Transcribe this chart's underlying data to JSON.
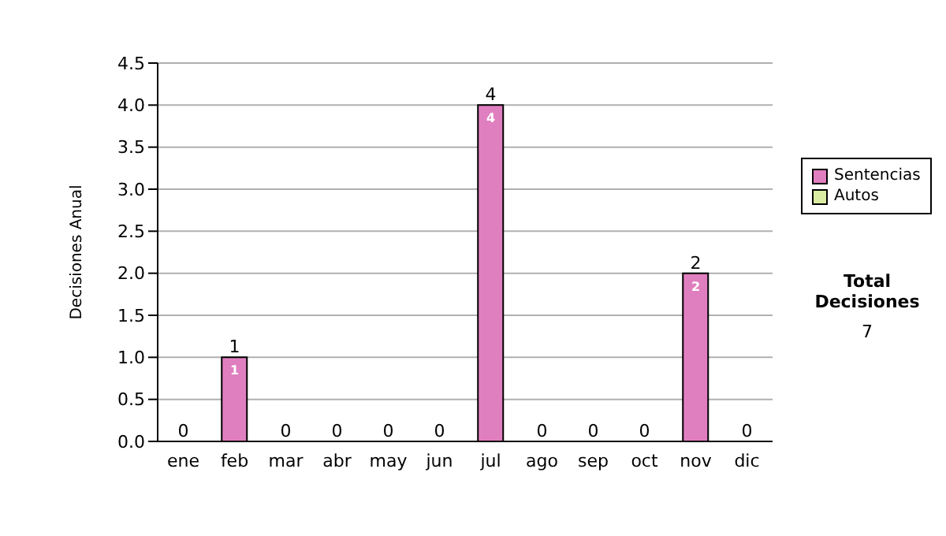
{
  "chart_data": {
    "type": "bar",
    "stacked": true,
    "ylabel": "Decisiones Anual",
    "categories": [
      "ene",
      "feb",
      "mar",
      "abr",
      "may",
      "jun",
      "jul",
      "ago",
      "sep",
      "oct",
      "nov",
      "dic"
    ],
    "series": [
      {
        "name": "Sentencias",
        "color": "#e07fbf",
        "values": [
          0,
          1,
          0,
          0,
          0,
          0,
          4,
          0,
          0,
          0,
          2,
          0
        ],
        "value_labels": [
          null,
          "1",
          null,
          null,
          null,
          null,
          "4",
          null,
          null,
          null,
          "2",
          null
        ]
      },
      {
        "name": "Autos",
        "color": "#d9eca2",
        "values": [
          0,
          0,
          0,
          0,
          0,
          0,
          0,
          0,
          0,
          0,
          0,
          0
        ]
      }
    ],
    "totals": [
      "0",
      "1",
      "0",
      "0",
      "0",
      "0",
      "4",
      "0",
      "0",
      "0",
      "2",
      "0"
    ],
    "ylim": [
      0,
      4.5
    ],
    "yticks": [
      {
        "value": 0,
        "label": "0.0"
      },
      0.5,
      {
        "value": 1,
        "label": "1.0"
      },
      1.5,
      {
        "value": 2,
        "label": "2.0"
      },
      2.5,
      {
        "value": 3,
        "label": "3.0"
      },
      3.5,
      {
        "value": 4,
        "label": "4.0"
      },
      4.5
    ],
    "grid": "y",
    "legend": "right",
    "annotations": [
      "Total Decisiones",
      "7"
    ]
  }
}
